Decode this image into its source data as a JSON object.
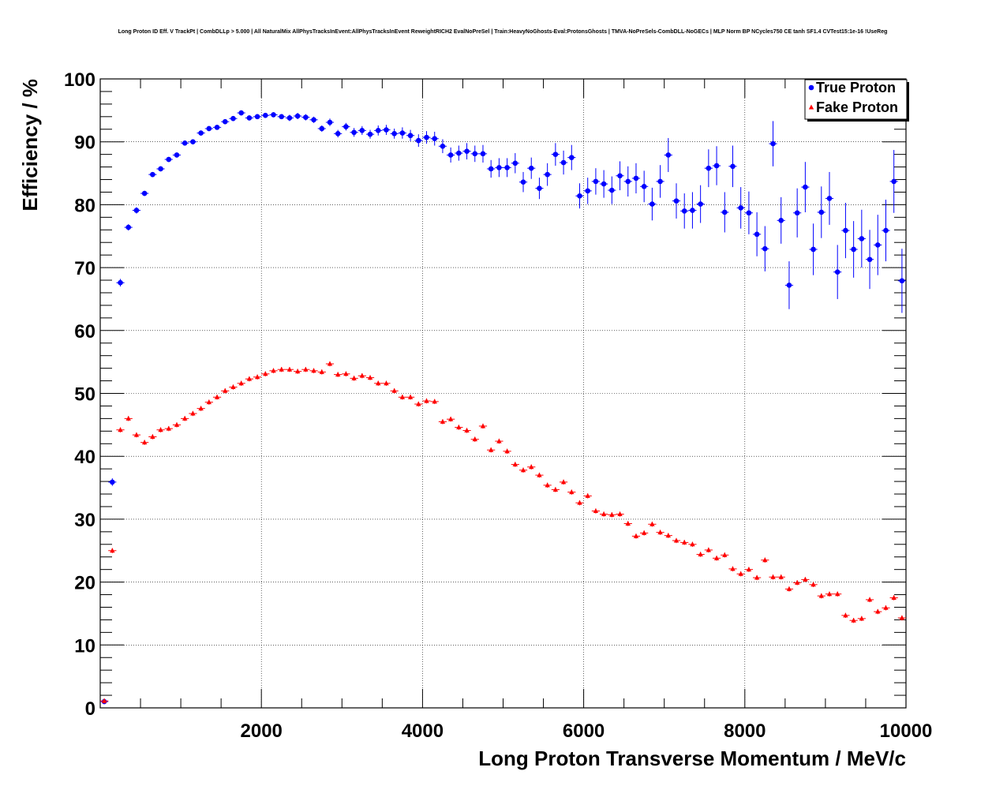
{
  "chart_data": {
    "type": "scatter",
    "title": "Long Proton ID Eff. V TrackPt | CombDLLp > 5.000 | All NaturalMix AllPhysTracksInEvent:AllPhysTracksInEvent ReweightRICH2 EvalNoPreSel | Train:HeavyNoGhosts-Eval:ProtonsGhosts | TMVA-NoPreSels-CombDLL-NoGECs | MLP Norm BP NCycles750 CE tanh SF1.4 CVTest15:1e-16 !UseReg",
    "xlabel": "Long Proton Transverse Momentum / MeV/c",
    "ylabel": "Efficiency / %",
    "xlim": [
      0,
      10000
    ],
    "ylim": [
      0,
      100
    ],
    "x_ticks": [
      2000,
      4000,
      6000,
      8000,
      10000
    ],
    "x_tick_labels": [
      "2000",
      "4000",
      "6000",
      "8000",
      "10000"
    ],
    "y_ticks": [
      0,
      10,
      20,
      30,
      40,
      50,
      60,
      70,
      80,
      90,
      100
    ],
    "y_tick_labels": [
      "0",
      "10",
      "20",
      "30",
      "40",
      "50",
      "60",
      "70",
      "80",
      "90",
      "100"
    ],
    "grid": true,
    "legend_position": "top-right",
    "series": [
      {
        "name": "True Proton",
        "color": "#0000ff",
        "marker": "circle",
        "x": [
          50,
          150,
          250,
          350,
          450,
          550,
          650,
          750,
          850,
          950,
          1050,
          1150,
          1250,
          1350,
          1450,
          1550,
          1650,
          1750,
          1850,
          1950,
          2050,
          2150,
          2250,
          2350,
          2450,
          2550,
          2650,
          2750,
          2850,
          2950,
          3050,
          3150,
          3250,
          3350,
          3450,
          3550,
          3650,
          3750,
          3850,
          3950,
          4050,
          4150,
          4250,
          4350,
          4450,
          4550,
          4650,
          4750,
          4850,
          4950,
          5050,
          5150,
          5250,
          5350,
          5450,
          5550,
          5650,
          5750,
          5850,
          5950,
          6050,
          6150,
          6250,
          6350,
          6450,
          6550,
          6650,
          6750,
          6850,
          6950,
          7050,
          7150,
          7250,
          7350,
          7450,
          7550,
          7650,
          7750,
          7850,
          7950,
          8050,
          8150,
          8250,
          8350,
          8450,
          8550,
          8650,
          8750,
          8850,
          8950,
          9050,
          9150,
          9250,
          9350,
          9450,
          9550,
          9650,
          9750,
          9850,
          9950
        ],
        "y": [
          1.0,
          35.9,
          67.6,
          76.4,
          79.1,
          81.8,
          84.8,
          85.7,
          87.2,
          87.9,
          89.8,
          90.0,
          91.4,
          92.1,
          92.3,
          93.2,
          93.7,
          94.6,
          93.8,
          94.0,
          94.2,
          94.3,
          94.0,
          93.8,
          94.1,
          93.9,
          93.5,
          92.1,
          93.1,
          91.3,
          92.4,
          91.5,
          91.8,
          91.2,
          91.8,
          91.9,
          91.3,
          91.4,
          91.0,
          90.2,
          90.7,
          90.5,
          89.3,
          87.9,
          88.2,
          88.5,
          88.1,
          88.1,
          85.7,
          85.9,
          85.9,
          86.6,
          83.6,
          85.8,
          82.6,
          84.8,
          88.0,
          86.7,
          87.5,
          81.4,
          82.2,
          83.7,
          83.3,
          82.3,
          84.6,
          83.7,
          84.2,
          82.9,
          80.1,
          83.7,
          87.9,
          80.6,
          79.0,
          79.1,
          80.1,
          85.8,
          86.2,
          78.8,
          86.1,
          79.5,
          78.7,
          75.3,
          73.0,
          89.7,
          77.5,
          67.2,
          78.7,
          82.8,
          72.9,
          78.8,
          81.0,
          69.3,
          75.9,
          72.9,
          74.6,
          71.3,
          73.6,
          75.9,
          83.7,
          67.9
        ],
        "err": [
          0.3,
          0.6,
          0.6,
          0.5,
          0.5,
          0.4,
          0.4,
          0.4,
          0.4,
          0.4,
          0.4,
          0.4,
          0.4,
          0.4,
          0.4,
          0.4,
          0.4,
          0.4,
          0.4,
          0.4,
          0.4,
          0.4,
          0.4,
          0.5,
          0.5,
          0.5,
          0.5,
          0.5,
          0.6,
          0.6,
          0.6,
          0.7,
          0.7,
          0.7,
          0.8,
          0.8,
          0.8,
          0.9,
          0.9,
          1.0,
          1.0,
          1.1,
          1.1,
          1.2,
          1.2,
          1.3,
          1.3,
          1.4,
          1.4,
          1.5,
          1.5,
          1.6,
          1.6,
          1.7,
          1.7,
          1.8,
          1.8,
          1.9,
          2.0,
          2.0,
          2.1,
          2.1,
          2.2,
          2.2,
          2.3,
          2.4,
          2.4,
          2.5,
          2.6,
          2.6,
          2.7,
          2.8,
          2.8,
          2.9,
          3.0,
          3.0,
          3.1,
          3.2,
          3.3,
          3.3,
          3.4,
          3.5,
          3.6,
          3.6,
          3.7,
          3.8,
          3.9,
          4.0,
          4.1,
          4.1,
          4.2,
          4.3,
          4.4,
          4.5,
          4.6,
          4.7,
          4.8,
          4.9,
          5.0,
          5.1
        ]
      },
      {
        "name": "Fake Proton",
        "color": "#ff0000",
        "marker": "triangle",
        "x": [
          50,
          150,
          250,
          350,
          450,
          550,
          650,
          750,
          850,
          950,
          1050,
          1150,
          1250,
          1350,
          1450,
          1550,
          1650,
          1750,
          1850,
          1950,
          2050,
          2150,
          2250,
          2350,
          2450,
          2550,
          2650,
          2750,
          2850,
          2950,
          3050,
          3150,
          3250,
          3350,
          3450,
          3550,
          3650,
          3750,
          3850,
          3950,
          4050,
          4150,
          4250,
          4350,
          4450,
          4550,
          4650,
          4750,
          4850,
          4950,
          5050,
          5150,
          5250,
          5350,
          5450,
          5550,
          5650,
          5750,
          5850,
          5950,
          6050,
          6150,
          6250,
          6350,
          6450,
          6550,
          6650,
          6750,
          6850,
          6950,
          7050,
          7150,
          7250,
          7350,
          7450,
          7550,
          7650,
          7750,
          7850,
          7950,
          8050,
          8150,
          8250,
          8350,
          8450,
          8550,
          8650,
          8750,
          8850,
          8950,
          9050,
          9150,
          9250,
          9350,
          9450,
          9550,
          9650,
          9750,
          9850,
          9950
        ],
        "y": [
          1.1,
          25.0,
          44.2,
          46.0,
          43.4,
          42.2,
          43.1,
          44.2,
          44.4,
          45.0,
          46.0,
          46.8,
          47.6,
          48.6,
          49.4,
          50.4,
          51.0,
          51.6,
          52.3,
          52.6,
          53.1,
          53.6,
          53.8,
          53.8,
          53.5,
          53.8,
          53.6,
          53.4,
          54.7,
          53.0,
          53.1,
          52.4,
          52.8,
          52.5,
          51.6,
          51.6,
          50.4,
          49.4,
          49.4,
          48.3,
          48.8,
          48.7,
          45.5,
          45.9,
          44.6,
          44.1,
          42.7,
          44.8,
          41.0,
          42.4,
          40.8,
          38.7,
          37.8,
          38.3,
          37.0,
          35.4,
          34.7,
          35.9,
          34.3,
          32.6,
          33.7,
          31.3,
          30.8,
          30.7,
          30.8,
          29.3,
          27.3,
          27.8,
          29.2,
          27.9,
          27.4,
          26.6,
          26.3,
          26.0,
          24.4,
          25.1,
          23.8,
          24.3,
          22.1,
          21.3,
          22.0,
          20.7,
          23.5,
          20.8,
          20.8,
          18.9,
          19.9,
          20.4,
          19.6,
          17.8,
          18.1,
          18.1,
          14.7,
          13.9,
          14.2,
          17.2,
          15.3,
          15.9,
          17.5,
          14.3
        ]
      }
    ]
  }
}
